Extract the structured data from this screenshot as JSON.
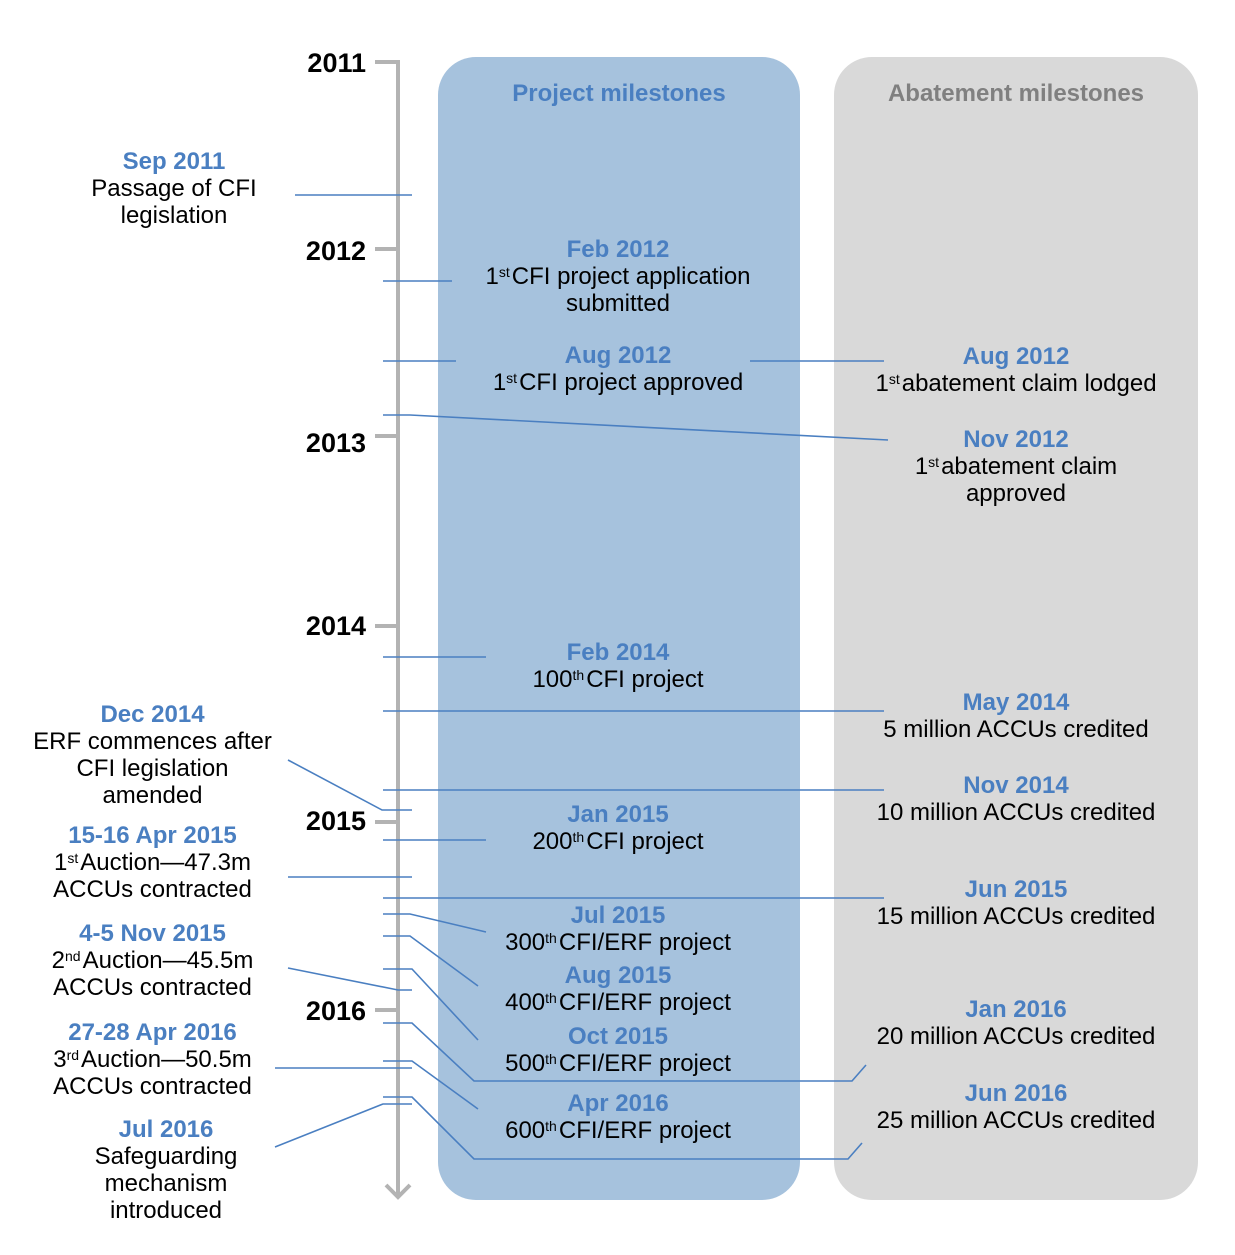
{
  "headers": {
    "project": "Project milestones",
    "abatement": "Abatement milestones"
  },
  "years": [
    "2011",
    "2012",
    "2013",
    "2014",
    "2015",
    "2016"
  ],
  "left_events": [
    {
      "date": "Sep 2011",
      "text": "Passage of CFI legislation"
    },
    {
      "date": "Dec 2014",
      "text": "ERF commences after CFI legislation amended"
    },
    {
      "date": "15-16 Apr 2015",
      "sup": "st",
      "text_pre": "1",
      "text": "Auction—47.3m ACCUs contracted"
    },
    {
      "date": "4-5 Nov 2015",
      "sup": "nd",
      "text_pre": "2",
      "text": "Auction—45.5m ACCUs contracted"
    },
    {
      "date": "27-28 Apr 2016",
      "sup": "rd",
      "text_pre": "3",
      "text": "Auction—50.5m ACCUs contracted"
    },
    {
      "date": "Jul 2016",
      "text": "Safeguarding mechanism introduced"
    }
  ],
  "project_events": [
    {
      "date": "Feb 2012",
      "text_pre": "1",
      "sup": "st",
      "text": "CFI project application submitted"
    },
    {
      "date": "Aug 2012",
      "text_pre": "1",
      "sup": "st",
      "text": "CFI project approved"
    },
    {
      "date": "Feb 2014",
      "text_pre": "100",
      "sup": "th",
      "text": "CFI project"
    },
    {
      "date": "Jan 2015",
      "text_pre": "200",
      "sup": "th",
      "text": "CFI project"
    },
    {
      "date": "Jul 2015",
      "text_pre": "300",
      "sup": "th",
      "text": "CFI/ERF project"
    },
    {
      "date": "Aug 2015",
      "text_pre": "400",
      "sup": "th",
      "text": "CFI/ERF project"
    },
    {
      "date": "Oct 2015",
      "text_pre": "500",
      "sup": "th",
      "text": "CFI/ERF project"
    },
    {
      "date": "Apr 2016",
      "text_pre": "600",
      "sup": "th",
      "text": "CFI/ERF project"
    }
  ],
  "abatement_events": [
    {
      "date": "Aug 2012",
      "text_pre": "1",
      "sup": "st",
      "text": "abatement claim lodged"
    },
    {
      "date": "Nov 2012",
      "text_pre": "1",
      "sup": "st",
      "text": "abatement claim approved"
    },
    {
      "date": "May 2014",
      "text": "5 million ACCUs credited"
    },
    {
      "date": "Nov 2014",
      "text": "10 million ACCUs credited"
    },
    {
      "date": "Jun 2015",
      "text": "15 million ACCUs credited"
    },
    {
      "date": "Jan 2016",
      "text": "20 million ACCUs credited"
    },
    {
      "date": "Jun 2016",
      "text": "25 million ACCUs credited"
    }
  ],
  "colors": {
    "accent": "#4a7fc1",
    "project_column": "#a6c2dd",
    "abatement_column": "#d9d9d9",
    "axis": "#b3b3b3"
  }
}
